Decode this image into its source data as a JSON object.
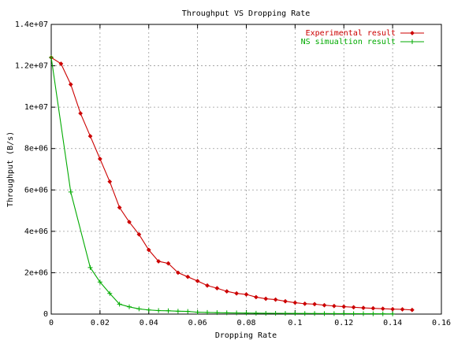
{
  "chart_data": {
    "type": "line",
    "title": "Throughput VS Dropping Rate",
    "xlabel": "Dropping Rate",
    "ylabel": "Throughput (B/s)",
    "xlim": [
      0,
      0.16
    ],
    "ylim": [
      0,
      14000000
    ],
    "x_ticks": [
      {
        "value": 0,
        "label": "0"
      },
      {
        "value": 0.02,
        "label": "0.02"
      },
      {
        "value": 0.04,
        "label": "0.04"
      },
      {
        "value": 0.06,
        "label": "0.06"
      },
      {
        "value": 0.08,
        "label": "0.08"
      },
      {
        "value": 0.1,
        "label": "0.1"
      },
      {
        "value": 0.12,
        "label": "0.12"
      },
      {
        "value": 0.14,
        "label": "0.14"
      },
      {
        "value": 0.16,
        "label": "0.16"
      }
    ],
    "y_ticks": [
      {
        "value": 0,
        "label": "0"
      },
      {
        "value": 2000000,
        "label": "2e+06"
      },
      {
        "value": 4000000,
        "label": "4e+06"
      },
      {
        "value": 6000000,
        "label": "6e+06"
      },
      {
        "value": 8000000,
        "label": "8e+06"
      },
      {
        "value": 10000000,
        "label": "1e+07"
      },
      {
        "value": 12000000,
        "label": "1.2e+07"
      },
      {
        "value": 14000000,
        "label": "1.4e+07"
      }
    ],
    "grid": true,
    "legend_position": "top-right",
    "series": [
      {
        "name": "Experimental result",
        "color": "#cc0000",
        "marker": "diamond",
        "x": [
          0,
          0.004,
          0.008,
          0.012,
          0.016,
          0.02,
          0.024,
          0.028,
          0.032,
          0.036,
          0.04,
          0.044,
          0.048,
          0.052,
          0.056,
          0.06,
          0.064,
          0.068,
          0.072,
          0.076,
          0.08,
          0.084,
          0.088,
          0.092,
          0.096,
          0.1,
          0.104,
          0.108,
          0.112,
          0.116,
          0.12,
          0.124,
          0.128,
          0.132,
          0.136,
          0.14,
          0.144,
          0.148
        ],
        "y": [
          12400000,
          12100000,
          11100000,
          9700000,
          8600000,
          7500000,
          6400000,
          5150000,
          4450000,
          3850000,
          3100000,
          2550000,
          2450000,
          2000000,
          1800000,
          1600000,
          1380000,
          1250000,
          1100000,
          1000000,
          950000,
          820000,
          740000,
          700000,
          620000,
          550000,
          500000,
          480000,
          430000,
          390000,
          360000,
          330000,
          300000,
          280000,
          260000,
          240000,
          230000,
          200000
        ]
      },
      {
        "name": "NS simualtion result",
        "color": "#00aa00",
        "marker": "plus",
        "x": [
          0,
          0.008,
          0.016,
          0.02,
          0.024,
          0.028,
          0.032,
          0.036,
          0.04,
          0.044,
          0.048,
          0.052,
          0.056,
          0.06,
          0.064,
          0.068,
          0.072,
          0.076,
          0.08,
          0.084,
          0.088,
          0.092,
          0.096,
          0.1,
          0.104,
          0.108,
          0.112,
          0.116,
          0.12,
          0.124,
          0.128,
          0.132,
          0.136,
          0.14
        ],
        "y": [
          12400000,
          5900000,
          2250000,
          1550000,
          1000000,
          480000,
          350000,
          250000,
          200000,
          170000,
          160000,
          140000,
          130000,
          90000,
          80000,
          70000,
          60000,
          55000,
          50000,
          45000,
          40000,
          38000,
          35000,
          32000,
          30000,
          28000,
          26000,
          24000,
          22000,
          20000,
          18000,
          15000,
          12000,
          10000
        ]
      }
    ]
  }
}
